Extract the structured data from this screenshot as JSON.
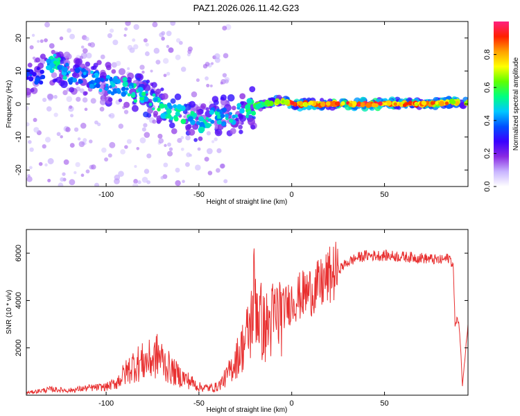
{
  "title": "PAZ1.2026.026.11.42.G23",
  "colors": {
    "snr_line": "#e83030",
    "axis": "#000000",
    "background": "#ffffff"
  },
  "chart_data": [
    {
      "type": "heatmap",
      "xlabel": "Height of straight line (km)",
      "ylabel": "Frequency (Hz)",
      "xlim": [
        -143,
        95
      ],
      "ylim": [
        -25,
        25
      ],
      "xticks": [
        -100,
        -50,
        0,
        50
      ],
      "yticks": [
        -20,
        -10,
        0,
        10,
        20
      ],
      "colorbar": {
        "label": "Normalized spectral amplitude",
        "range": [
          0,
          1
        ],
        "ticks": [
          "0.0",
          "0.2",
          "0.4",
          "0.6",
          "0.8"
        ],
        "tick_values": [
          0,
          0.2,
          0.4,
          0.6,
          0.8
        ],
        "colormap": [
          "#ffffff",
          "#c8b4ff",
          "#8a2be2",
          "#3a00ff",
          "#0050ff",
          "#00c8ff",
          "#00ff80",
          "#60ff00",
          "#ffff00",
          "#ffa000",
          "#ff2000",
          "#ff2080"
        ]
      },
      "ridge": [
        {
          "x": -135,
          "f": 9,
          "a": 0.35
        },
        {
          "x": -128,
          "f": 13,
          "a": 0.55
        },
        {
          "x": -120,
          "f": 9,
          "a": 0.45
        },
        {
          "x": -110,
          "f": 8,
          "a": 0.45
        },
        {
          "x": -100,
          "f": 6,
          "a": 0.45
        },
        {
          "x": -90,
          "f": 5,
          "a": 0.5
        },
        {
          "x": -80,
          "f": 2,
          "a": 0.55
        },
        {
          "x": -70,
          "f": -1,
          "a": 0.55
        },
        {
          "x": -60,
          "f": -3,
          "a": 0.55
        },
        {
          "x": -50,
          "f": -6,
          "a": 0.5
        },
        {
          "x": -42,
          "f": -4,
          "a": 0.5
        },
        {
          "x": -35,
          "f": -4,
          "a": 0.5
        },
        {
          "x": -25,
          "f": -2,
          "a": 0.55
        },
        {
          "x": -15,
          "f": 0,
          "a": 0.65
        },
        {
          "x": -5,
          "f": 1,
          "a": 0.75
        },
        {
          "x": 0,
          "f": 0,
          "a": 0.9
        },
        {
          "x": 10,
          "f": 0,
          "a": 0.9
        },
        {
          "x": 30,
          "f": 0,
          "a": 0.95
        },
        {
          "x": 50,
          "f": 0,
          "a": 0.95
        },
        {
          "x": 70,
          "f": 0,
          "a": 0.9
        },
        {
          "x": 85,
          "f": 0.5,
          "a": 0.85
        },
        {
          "x": 95,
          "f": 0.5,
          "a": 0.8
        }
      ]
    },
    {
      "type": "line",
      "xlabel": "Height of straight line (km)",
      "ylabel": "SNR (10 * v/v)",
      "xlim": [
        -143,
        95
      ],
      "ylim": [
        0,
        7000
      ],
      "xticks": [
        -100,
        -50,
        0,
        50
      ],
      "yticks": [
        2000,
        4000,
        6000
      ],
      "series": [
        {
          "x": [
            -143,
            -130,
            -120,
            -110,
            -100,
            -95,
            -90,
            -85,
            -80,
            -75,
            -72,
            -68,
            -64,
            -60,
            -55,
            -50,
            -45,
            -40,
            -35,
            -30,
            -25,
            -22,
            -20,
            -18,
            -15,
            -12,
            -10,
            -5,
            0,
            5,
            10,
            15,
            20,
            25,
            30,
            35,
            40,
            50,
            60,
            70,
            80,
            85,
            87,
            88,
            89,
            90,
            91,
            92,
            95
          ],
          "y": [
            100,
            250,
            200,
            300,
            350,
            500,
            900,
            1300,
            1400,
            1500,
            1700,
            1300,
            1000,
            800,
            600,
            350,
            300,
            350,
            800,
            1500,
            2300,
            3000,
            4500,
            3500,
            2800,
            3000,
            3200,
            3600,
            4000,
            4200,
            4400,
            4600,
            5000,
            5300,
            5600,
            5800,
            5900,
            5900,
            5850,
            5800,
            5700,
            5800,
            5500,
            3000,
            3200,
            3100,
            2000,
            400,
            3000
          ]
        }
      ]
    }
  ]
}
